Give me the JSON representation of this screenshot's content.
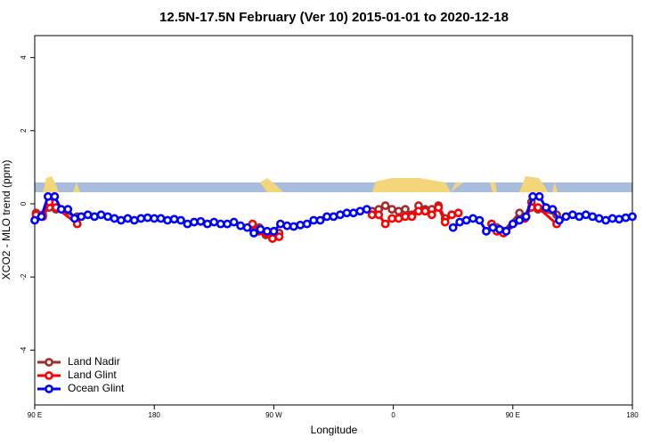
{
  "chart_data": {
    "type": "line",
    "title": "12.5N-17.5N February (Ver 10)   2015-01-01 to 2020-12-18",
    "x_label": "Longitude",
    "y_label": "XCO2 - MLO trend (ppm)",
    "xlim": [
      90,
      540
    ],
    "ylim": [
      -5.5,
      4.6
    ],
    "xticks": [
      {
        "value": 90,
        "label": "90 E"
      },
      180,
      {
        "value": 270,
        "label": "90 W"
      },
      {
        "value": 360,
        "label": "0"
      },
      {
        "value": 450,
        "label": "90 E"
      },
      {
        "value": 540,
        "label": "180"
      }
    ],
    "yticks": [
      -4,
      -2,
      0,
      2,
      4
    ],
    "legend": "bottom-left",
    "series": [
      {
        "name": "Land Nadir",
        "color": "#a52a2a",
        "x": [
          91,
          96,
          101,
          106,
          122,
          190,
          254,
          259,
          264,
          269,
          274,
          310,
          344,
          349,
          354,
          359,
          364,
          369,
          374,
          379,
          384,
          389,
          394,
          399,
          404,
          420,
          434,
          438,
          443,
          455,
          459,
          464,
          469,
          483
        ],
        "values": [
          -0.25,
          -0.3,
          -0.1,
          -0.15,
          -0.35,
          null,
          -0.6,
          -0.65,
          -0.85,
          -0.8,
          -0.8,
          null,
          -0.2,
          -0.15,
          -0.05,
          -0.15,
          -0.2,
          -0.15,
          -0.3,
          -0.05,
          -0.15,
          -0.15,
          -0.05,
          -0.4,
          -0.3,
          null,
          -0.55,
          -0.65,
          -0.75,
          -0.25,
          -0.35,
          0.05,
          -0.15,
          -0.3
        ]
      },
      {
        "name": "Land Glint",
        "color": "#ff0000",
        "x": [
          91,
          96,
          101,
          106,
          122,
          190,
          254,
          259,
          264,
          269,
          274,
          310,
          344,
          349,
          354,
          359,
          364,
          369,
          374,
          379,
          384,
          389,
          394,
          399,
          404,
          409,
          420,
          434,
          438,
          443,
          459,
          464,
          469,
          483
        ],
        "values": [
          -0.3,
          -0.35,
          0.05,
          -0.1,
          -0.55,
          null,
          -0.55,
          -0.75,
          -0.8,
          -0.95,
          -0.9,
          null,
          -0.3,
          -0.3,
          -0.55,
          -0.4,
          -0.4,
          -0.35,
          -0.35,
          -0.2,
          -0.2,
          -0.3,
          -0.1,
          -0.5,
          -0.3,
          -0.25,
          null,
          -0.55,
          -0.75,
          -0.8,
          -0.4,
          -0.1,
          -0.1,
          -0.55
        ]
      },
      {
        "name": "Ocean Glint",
        "color": "#0000ff",
        "x": [
          90,
          95,
          100,
          105,
          110,
          115,
          120,
          125,
          130,
          135,
          140,
          145,
          150,
          155,
          160,
          165,
          170,
          175,
          180,
          185,
          190,
          195,
          200,
          205,
          210,
          215,
          220,
          225,
          230,
          235,
          240,
          245,
          250,
          255,
          260,
          265,
          270,
          275,
          280,
          285,
          290,
          295,
          300,
          305,
          310,
          315,
          320,
          325,
          330,
          335,
          340,
          345,
          350,
          355,
          360,
          365,
          370,
          375,
          380,
          385,
          390,
          395,
          400,
          405,
          410,
          415,
          420,
          425,
          430,
          435,
          440,
          445,
          450,
          455,
          460,
          465,
          470,
          475,
          480,
          485,
          490,
          495,
          500,
          505,
          510,
          515,
          520,
          525,
          530,
          535,
          540
        ],
        "values": [
          -0.45,
          -0.35,
          0.2,
          0.2,
          -0.15,
          -0.15,
          -0.4,
          -0.35,
          -0.3,
          -0.35,
          -0.3,
          -0.35,
          -0.4,
          -0.45,
          -0.4,
          -0.45,
          -0.4,
          -0.38,
          -0.4,
          -0.4,
          -0.45,
          -0.42,
          -0.45,
          -0.55,
          -0.5,
          -0.48,
          -0.55,
          -0.5,
          -0.55,
          -0.55,
          -0.5,
          -0.6,
          -0.65,
          -0.8,
          -0.7,
          -0.75,
          -0.75,
          -0.55,
          -0.6,
          -0.62,
          -0.58,
          -0.55,
          -0.45,
          -0.45,
          -0.35,
          -0.35,
          -0.3,
          -0.25,
          -0.25,
          -0.2,
          -0.15,
          null,
          null,
          null,
          null,
          null,
          null,
          null,
          null,
          null,
          null,
          null,
          null,
          -0.65,
          -0.5,
          -0.45,
          -0.4,
          -0.45,
          -0.75,
          -0.65,
          -0.7,
          -0.75,
          -0.55,
          -0.45,
          -0.35,
          0.2,
          0.2,
          -0.1,
          -0.15,
          -0.45,
          -0.35,
          -0.3,
          -0.35,
          -0.3,
          -0.35,
          -0.4,
          -0.45,
          -0.4,
          -0.42,
          -0.38,
          -0.35
        ]
      }
    ]
  }
}
